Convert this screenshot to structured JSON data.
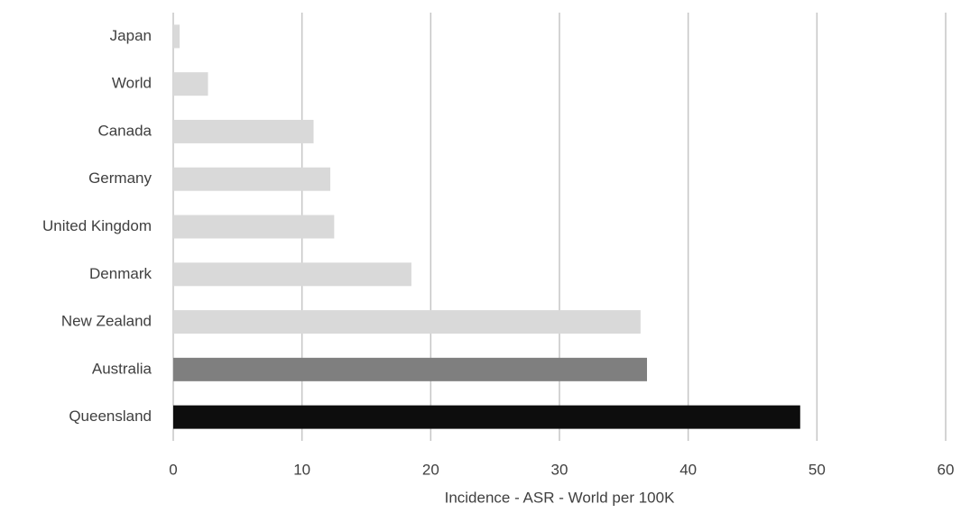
{
  "chart_data": {
    "type": "bar",
    "orientation": "horizontal",
    "x_label": "Incidence - ASR - World per 100K",
    "categories": [
      "Japan",
      "World",
      "Canada",
      "Germany",
      "United Kingdom",
      "Denmark",
      "New Zealand",
      "Australia",
      "Queensland"
    ],
    "values": [
      0.5,
      2.7,
      10.9,
      12.2,
      12.5,
      18.5,
      36.3,
      36.8,
      48.7
    ],
    "colors": [
      "#d9d9d9",
      "#d9d9d9",
      "#d9d9d9",
      "#d9d9d9",
      "#d9d9d9",
      "#d9d9d9",
      "#d9d9d9",
      "#7f7f7f",
      "#0d0d0d"
    ],
    "xlim": [
      0,
      60
    ],
    "xticks": [
      0,
      10,
      20,
      30,
      40,
      50,
      60
    ],
    "grid": true
  }
}
